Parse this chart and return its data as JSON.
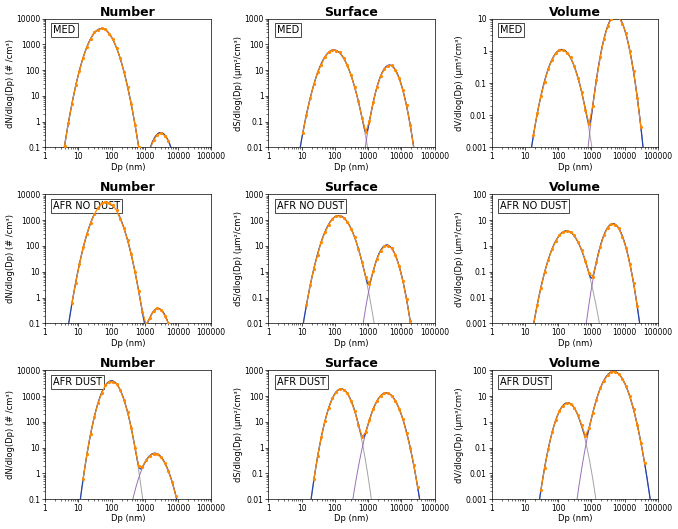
{
  "rows": [
    "MED",
    "AFR NO DUST",
    "AFR DUST"
  ],
  "cols": [
    "Number",
    "Surface",
    "Volume"
  ],
  "col_ylabels": [
    "dN/dlog(Dp) (# /cm³)",
    "dS/dlog(Dp) (μm²/cm³)",
    "dV/dlog(Dp) (μm³/cm³)"
  ],
  "xlabel": "Dp (nm)",
  "xlim": [
    1,
    100000
  ],
  "bg_color": "#ffffff",
  "orange_color": "#FF8800",
  "blue_color": "#2244AA",
  "gray_color": "#999999",
  "purple_color": "#9060B0",
  "scenario_modes": {
    "MED": [
      {
        "N": 2500,
        "Dp": 50,
        "sigma": 1.75
      },
      {
        "N": 0.18,
        "Dp": 3000,
        "sigma": 1.55
      }
    ],
    "AFR NO DUST": [
      {
        "N": 3200,
        "Dp": 70,
        "sigma": 1.75
      },
      {
        "N": 0.18,
        "Dp": 2500,
        "sigma": 1.55
      }
    ],
    "AFR DUST": [
      {
        "N": 2000,
        "Dp": 100,
        "sigma": 1.6
      },
      {
        "N": 3.5,
        "Dp": 2000,
        "sigma": 1.7
      }
    ]
  },
  "ylims": [
    [
      [
        0.1,
        10000
      ],
      [
        0.01,
        1000
      ],
      [
        0.001,
        10
      ]
    ],
    [
      [
        0.1,
        10000
      ],
      [
        0.01,
        1000
      ],
      [
        0.001,
        100
      ]
    ],
    [
      [
        0.1,
        10000
      ],
      [
        0.01,
        1000
      ],
      [
        0.001,
        100
      ]
    ]
  ],
  "title_fontsize": 9,
  "label_fontsize": 6,
  "tick_fontsize": 5.5,
  "row_label_fontsize": 7
}
